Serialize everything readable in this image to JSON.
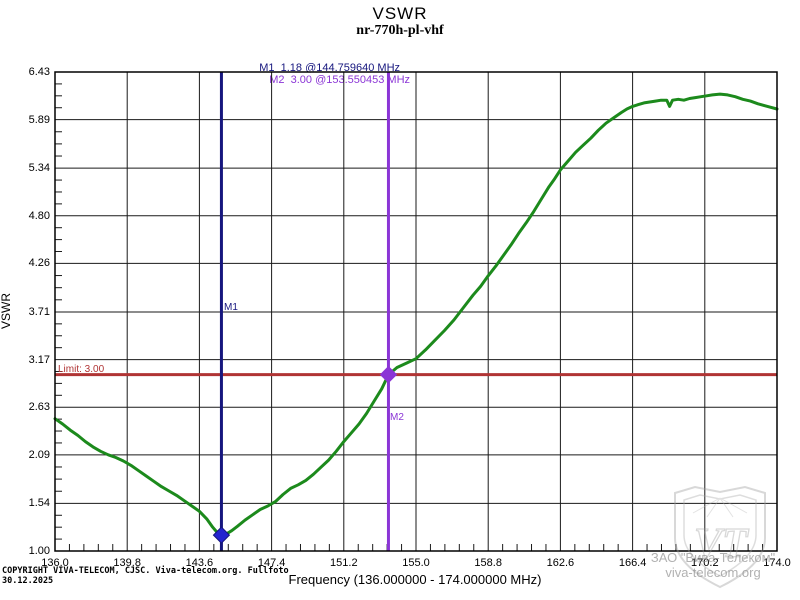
{
  "header": {
    "title": "VSWR",
    "subtitle": "nr-770h-pl-vhf"
  },
  "markers": {
    "m1": {
      "name": "M1",
      "readout": "M1  1.18 @144.759640 MHz",
      "frequency_mhz": 144.75964,
      "vswr": 1.18,
      "line_color": "#16167e",
      "diamond_color": "#2424cf"
    },
    "m2": {
      "name": "M2",
      "readout": "M2  3.00 @153.550453 MHz",
      "frequency_mhz": 153.550453,
      "vswr": 3.0,
      "line_color": "#8b35d6",
      "diamond_color": "#8b35d6"
    }
  },
  "limit": {
    "label": "Limit: 3.00",
    "value": 3.0,
    "color": "#b03434"
  },
  "axes": {
    "y_label": "VSWR",
    "x_label": "Frequency (136.000000 - 174.000000 MHz)",
    "y_tick_labels": [
      "1.00",
      "1.54",
      "2.09",
      "2.63",
      "3.17",
      "3.71",
      "4.26",
      "4.80",
      "5.34",
      "5.89",
      "6.43"
    ],
    "x_tick_labels": [
      "136.0",
      "139.8",
      "143.6",
      "147.4",
      "151.2",
      "155.0",
      "158.8",
      "162.6",
      "166.4",
      "170.2",
      "174.0"
    ]
  },
  "footer": {
    "copyright": "COPYRIGHT VIVA-TELECOM, CJSC. Viva-telecom.org. Fullfoto",
    "date": "30.12.2025"
  },
  "watermark": {
    "line1": "ЗАО \"Вива-Телеком\"",
    "line2": "viva-telecom.org",
    "monogram": "VT"
  },
  "chart_data": {
    "type": "line",
    "title": "VSWR",
    "subtitle": "nr-770h-pl-vhf",
    "xlabel": "Frequency (136.000000 - 174.000000 MHz)",
    "ylabel": "VSWR",
    "xlim": [
      136.0,
      174.0
    ],
    "ylim": [
      1.0,
      6.43
    ],
    "x_ticks": [
      136.0,
      139.8,
      143.6,
      147.4,
      151.2,
      155.0,
      158.8,
      162.6,
      166.4,
      170.2,
      174.0
    ],
    "y_ticks": [
      1.0,
      1.54,
      2.09,
      2.63,
      3.17,
      3.71,
      4.26,
      4.8,
      5.34,
      5.89,
      6.43
    ],
    "x_minor_per_major": 5,
    "y_minor_per_major": 4,
    "grid": true,
    "legend": "none",
    "grid_color": "#1a1a1a",
    "limit_line": {
      "y": 3.0,
      "label": "Limit: 3.00",
      "color": "#b03434"
    },
    "marker_lines": [
      {
        "name": "M1",
        "x": 144.75964,
        "y": 1.18,
        "color": "#16167e",
        "diamond_color": "#2424cf"
      },
      {
        "name": "M2",
        "x": 153.550453,
        "y": 3.0,
        "color": "#8b35d6",
        "diamond_color": "#8b35d6"
      }
    ],
    "series": [
      {
        "name": "VSWR",
        "color": "#1c8a1c",
        "width": 3,
        "points": [
          [
            136.0,
            2.5
          ],
          [
            136.4,
            2.44
          ],
          [
            136.8,
            2.37
          ],
          [
            137.2,
            2.31
          ],
          [
            137.6,
            2.24
          ],
          [
            138.0,
            2.18
          ],
          [
            138.4,
            2.13
          ],
          [
            138.8,
            2.09
          ],
          [
            139.2,
            2.06
          ],
          [
            139.6,
            2.02
          ],
          [
            140.0,
            1.97
          ],
          [
            140.4,
            1.91
          ],
          [
            140.8,
            1.85
          ],
          [
            141.2,
            1.79
          ],
          [
            141.6,
            1.73
          ],
          [
            142.0,
            1.68
          ],
          [
            142.4,
            1.63
          ],
          [
            142.8,
            1.57
          ],
          [
            143.2,
            1.51
          ],
          [
            143.6,
            1.45
          ],
          [
            144.0,
            1.36
          ],
          [
            144.3,
            1.27
          ],
          [
            144.5,
            1.22
          ],
          [
            144.76,
            1.18
          ],
          [
            145.0,
            1.19
          ],
          [
            145.3,
            1.23
          ],
          [
            145.6,
            1.28
          ],
          [
            146.0,
            1.35
          ],
          [
            146.4,
            1.41
          ],
          [
            146.8,
            1.47
          ],
          [
            147.2,
            1.51
          ],
          [
            147.6,
            1.56
          ],
          [
            148.0,
            1.64
          ],
          [
            148.4,
            1.71
          ],
          [
            148.8,
            1.75
          ],
          [
            149.2,
            1.8
          ],
          [
            149.6,
            1.87
          ],
          [
            150.0,
            1.95
          ],
          [
            150.4,
            2.03
          ],
          [
            150.8,
            2.13
          ],
          [
            151.2,
            2.24
          ],
          [
            151.6,
            2.34
          ],
          [
            152.0,
            2.44
          ],
          [
            152.4,
            2.56
          ],
          [
            152.8,
            2.7
          ],
          [
            153.2,
            2.84
          ],
          [
            153.55,
            3.0
          ],
          [
            154.0,
            3.08
          ],
          [
            154.5,
            3.13
          ],
          [
            155.0,
            3.18
          ],
          [
            155.5,
            3.28
          ],
          [
            156.0,
            3.39
          ],
          [
            156.5,
            3.5
          ],
          [
            157.0,
            3.62
          ],
          [
            157.5,
            3.76
          ],
          [
            158.0,
            3.9
          ],
          [
            158.4,
            4.0
          ],
          [
            158.8,
            4.12
          ],
          [
            159.2,
            4.23
          ],
          [
            159.6,
            4.35
          ],
          [
            160.0,
            4.47
          ],
          [
            160.4,
            4.6
          ],
          [
            160.8,
            4.72
          ],
          [
            161.2,
            4.85
          ],
          [
            161.6,
            4.99
          ],
          [
            162.0,
            5.13
          ],
          [
            162.3,
            5.22
          ],
          [
            162.6,
            5.32
          ],
          [
            163.0,
            5.42
          ],
          [
            163.4,
            5.52
          ],
          [
            163.8,
            5.6
          ],
          [
            164.2,
            5.68
          ],
          [
            164.6,
            5.77
          ],
          [
            165.0,
            5.85
          ],
          [
            165.4,
            5.91
          ],
          [
            165.8,
            5.97
          ],
          [
            166.1,
            6.01
          ],
          [
            166.4,
            6.04
          ],
          [
            166.7,
            6.06
          ],
          [
            167.0,
            6.08
          ],
          [
            167.3,
            6.09
          ],
          [
            167.6,
            6.1
          ],
          [
            167.9,
            6.11
          ],
          [
            168.2,
            6.11
          ],
          [
            168.35,
            6.04
          ],
          [
            168.5,
            6.11
          ],
          [
            168.8,
            6.12
          ],
          [
            169.1,
            6.11
          ],
          [
            169.4,
            6.13
          ],
          [
            169.7,
            6.14
          ],
          [
            170.0,
            6.15
          ],
          [
            170.3,
            6.16
          ],
          [
            170.6,
            6.17
          ],
          [
            171.0,
            6.18
          ],
          [
            171.4,
            6.17
          ],
          [
            171.8,
            6.15
          ],
          [
            172.2,
            6.12
          ],
          [
            172.6,
            6.1
          ],
          [
            173.0,
            6.07
          ],
          [
            173.5,
            6.04
          ],
          [
            174.0,
            6.01
          ]
        ]
      }
    ]
  }
}
